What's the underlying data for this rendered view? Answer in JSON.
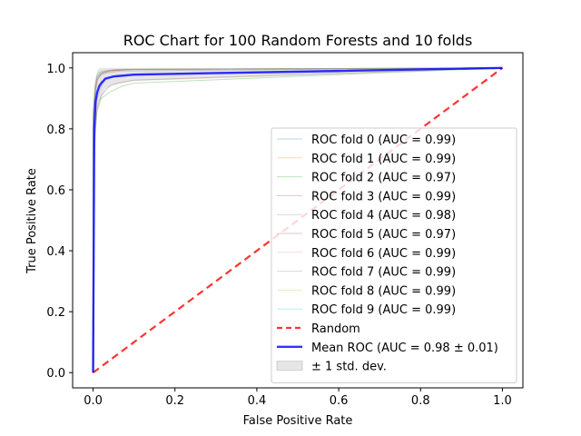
{
  "chart_data": {
    "type": "line",
    "title": "ROC Chart for 100 Random Forests and 10 folds",
    "xlabel": "False Positive Rate",
    "ylabel": "True Positive Rate",
    "xlim": [
      -0.05,
      1.05
    ],
    "ylim": [
      -0.05,
      1.05
    ],
    "x_ticks": [
      0.0,
      0.2,
      0.4,
      0.6,
      0.8,
      1.0
    ],
    "y_ticks": [
      0.0,
      0.2,
      0.4,
      0.6,
      0.8,
      1.0
    ],
    "x_tick_labels": [
      "0.0",
      "0.2",
      "0.4",
      "0.6",
      "0.8",
      "1.0"
    ],
    "y_tick_labels": [
      "0.0",
      "0.2",
      "0.4",
      "0.6",
      "0.8",
      "1.0"
    ],
    "grid": false,
    "legend_position": "lower-right",
    "series": [
      {
        "name": "ROC fold 0 (AUC = 0.99)",
        "color": "#1f77b4",
        "x": [
          0,
          0.0,
          0.005,
          0.01,
          0.02,
          0.04,
          0.1,
          1.0
        ],
        "y": [
          0,
          0.8,
          0.93,
          0.97,
          0.985,
          0.99,
          0.995,
          1.0
        ]
      },
      {
        "name": "ROC fold 1 (AUC = 0.99)",
        "color": "#ff7f0e",
        "x": [
          0,
          0.0,
          0.005,
          0.01,
          0.02,
          0.03,
          0.08,
          1.0
        ],
        "y": [
          0,
          0.85,
          0.94,
          0.97,
          0.98,
          0.99,
          0.995,
          1.0
        ]
      },
      {
        "name": "ROC fold 2 (AUC = 0.97)",
        "color": "#2ca02c",
        "x": [
          0,
          0.0,
          0.01,
          0.02,
          0.04,
          0.07,
          0.1,
          1.0
        ],
        "y": [
          0,
          0.7,
          0.86,
          0.9,
          0.92,
          0.94,
          0.95,
          1.0
        ]
      },
      {
        "name": "ROC fold 3 (AUC = 0.99)",
        "color": "#d62728",
        "x": [
          0,
          0.0,
          0.005,
          0.01,
          0.02,
          0.04,
          0.08,
          1.0
        ],
        "y": [
          0,
          0.82,
          0.92,
          0.96,
          0.98,
          0.99,
          0.995,
          1.0
        ]
      },
      {
        "name": "ROC fold 4 (AUC = 0.98)",
        "color": "#9467bd",
        "x": [
          0,
          0.0,
          0.01,
          0.02,
          0.03,
          0.05,
          0.1,
          1.0
        ],
        "y": [
          0,
          0.78,
          0.9,
          0.94,
          0.96,
          0.97,
          0.98,
          1.0
        ]
      },
      {
        "name": "ROC fold 5 (AUC = 0.97)",
        "color": "#8c564b",
        "x": [
          0,
          0.0,
          0.01,
          0.02,
          0.04,
          0.06,
          0.1,
          1.0
        ],
        "y": [
          0,
          0.72,
          0.87,
          0.91,
          0.94,
          0.95,
          0.96,
          1.0
        ]
      },
      {
        "name": "ROC fold 6 (AUC = 0.99)",
        "color": "#e377c2",
        "x": [
          0,
          0.0,
          0.005,
          0.01,
          0.02,
          0.03,
          0.06,
          1.0
        ],
        "y": [
          0,
          0.84,
          0.93,
          0.97,
          0.98,
          0.99,
          0.995,
          1.0
        ]
      },
      {
        "name": "ROC fold 7 (AUC = 0.99)",
        "color": "#7f7f7f",
        "x": [
          0,
          0.0,
          0.005,
          0.01,
          0.02,
          0.04,
          0.07,
          1.0
        ],
        "y": [
          0,
          0.8,
          0.91,
          0.96,
          0.98,
          0.985,
          0.99,
          1.0
        ]
      },
      {
        "name": "ROC fold 8 (AUC = 0.99)",
        "color": "#bcbd22",
        "x": [
          0,
          0.0,
          0.005,
          0.01,
          0.02,
          0.03,
          0.05,
          1.0
        ],
        "y": [
          0,
          0.83,
          0.94,
          0.97,
          0.99,
          0.99,
          0.995,
          1.0
        ]
      },
      {
        "name": "ROC fold 9 (AUC = 0.99)",
        "color": "#17becf",
        "x": [
          0,
          0.0,
          0.005,
          0.01,
          0.015,
          0.03,
          0.06,
          1.0
        ],
        "y": [
          0,
          0.86,
          0.95,
          0.98,
          0.985,
          0.99,
          0.995,
          1.0
        ]
      },
      {
        "name": "Random",
        "color": "#ff0000",
        "style": "dashed",
        "x": [
          0.0,
          1.0
        ],
        "y": [
          0.0,
          1.0
        ]
      },
      {
        "name": "Mean ROC (AUC = 0.98 ± 0.01)",
        "color": "#0000ff",
        "x": [
          0,
          0.003,
          0.006,
          0.01,
          0.015,
          0.02,
          0.03,
          0.05,
          0.1,
          0.3,
          0.6,
          1.0
        ],
        "y": [
          0,
          0.8,
          0.89,
          0.92,
          0.94,
          0.95,
          0.965,
          0.972,
          0.978,
          0.983,
          0.99,
          1.0
        ]
      }
    ],
    "std_band": {
      "name": "± 1 std. dev.",
      "color": "#808080",
      "x": [
        0,
        0.003,
        0.006,
        0.01,
        0.015,
        0.02,
        0.03,
        0.05,
        0.1,
        0.3,
        0.6,
        1.0
      ],
      "upper": [
        0,
        0.9,
        0.96,
        0.99,
        1.0,
        1.0,
        1.0,
        1.0,
        1.0,
        1.0,
        1.0,
        1.0
      ],
      "lower": [
        0,
        0.7,
        0.82,
        0.86,
        0.89,
        0.9,
        0.93,
        0.945,
        0.957,
        0.966,
        0.98,
        1.0
      ]
    }
  }
}
